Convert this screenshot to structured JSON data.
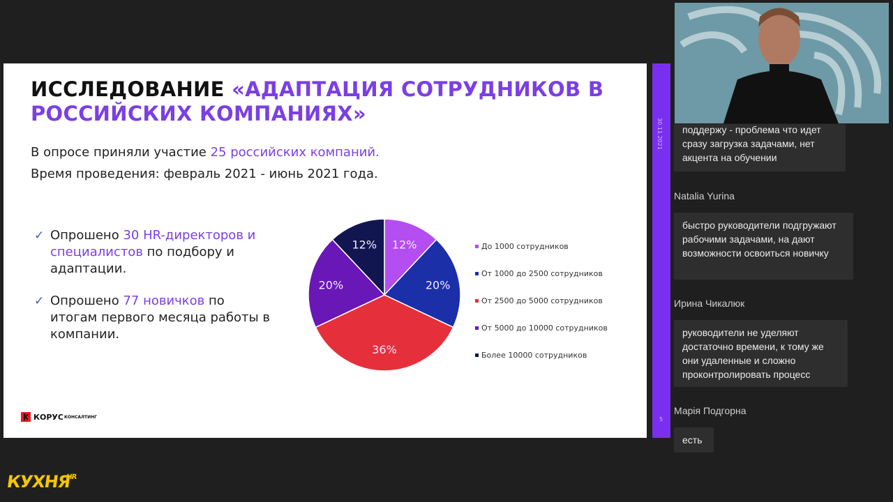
{
  "slide": {
    "title_plain": "ИССЛЕДОВАНИЕ ",
    "title_accent": "«АДАПТАЦИЯ СОТРУДНИКОВ В РОССИЙСКИХ КОМПАНИЯХ»",
    "intro_line1_a": "В опросе приняли участие ",
    "intro_line1_b": "25 российских компаний.",
    "intro_line2": "Время проведения: февраль 2021 - июнь 2021 года.",
    "checks": [
      {
        "plain_a": "Опрошено ",
        "accent": "30 HR-директоров и специалистов",
        "plain_b": " по подбору и адаптации."
      },
      {
        "plain_a": "Опрошено ",
        "accent": "77 новичков",
        "plain_b": " по итогам первого месяца работы в компании."
      }
    ],
    "logo_name": "КОРУС",
    "logo_sub": "КОНСАЛТИНГ",
    "strip_date": "30.11.2021",
    "page_number": "5"
  },
  "chart_data": {
    "type": "pie",
    "categories": [
      "До 1000 сотрудников",
      "От 1000 до 2500 сотрудников",
      "От 2500 до 5000 сотрудников",
      "От 5000 до 10000 сотрудников",
      "Более 10000 сотрудников"
    ],
    "values": [
      12,
      20,
      36,
      20,
      12
    ],
    "labels": [
      "12%",
      "20%",
      "36%",
      "20%",
      "12%"
    ],
    "colors": [
      "#b44ef0",
      "#1b2fa8",
      "#e5303c",
      "#6a17b8",
      "#121650"
    ],
    "legend": "right"
  },
  "chat": {
    "messages": [
      {
        "author": "",
        "text": "поддержу - проблема  что идет сразу загрузка задачами, нет акцента на обучении"
      },
      {
        "author": "Natalia Yurina",
        "text": "быстро руководители подгружают рабочими задачами, на дают возможности освоиться новичку"
      },
      {
        "author": "Ирина Чикалюк",
        "text": "руководители не уделяют достаточно времени, к тому же они удаленные и сложно проконтролировать процесс"
      },
      {
        "author": "Марія Подгорна",
        "text": "есть"
      }
    ]
  },
  "brand": {
    "main": "КУХНЯ",
    "sup": "HR"
  }
}
